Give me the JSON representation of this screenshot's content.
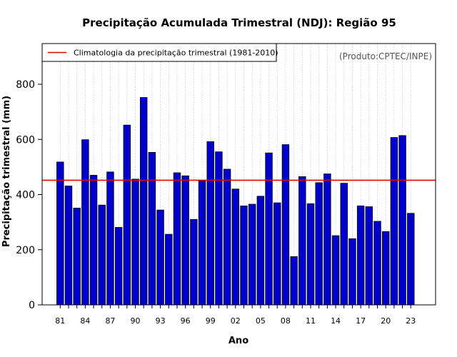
{
  "chart_data": {
    "type": "bar",
    "title": "Precipitação Acumulada Trimestral (NDJ): Região 95",
    "xlabel": "Ano",
    "ylabel": "Precipitação trimestral (mm)",
    "ylim": [
      0,
      950
    ],
    "yticks": [
      0,
      200,
      400,
      600,
      800
    ],
    "categories": [
      "81",
      "82",
      "83",
      "84",
      "85",
      "86",
      "87",
      "88",
      "89",
      "90",
      "91",
      "92",
      "93",
      "94",
      "95",
      "96",
      "97",
      "98",
      "99",
      "00",
      "01",
      "02",
      "03",
      "04",
      "05",
      "06",
      "07",
      "08",
      "09",
      "10",
      "11",
      "12",
      "13",
      "14",
      "15",
      "16",
      "17",
      "18",
      "19",
      "20",
      "21",
      "22",
      "23"
    ],
    "xtick_labels": [
      "81",
      "84",
      "87",
      "90",
      "93",
      "96",
      "99",
      "02",
      "05",
      "08",
      "11",
      "14",
      "17",
      "20",
      "23"
    ],
    "values": [
      518,
      431,
      351,
      599,
      470,
      362,
      482,
      281,
      652,
      456,
      752,
      553,
      344,
      256,
      479,
      468,
      310,
      450,
      592,
      555,
      492,
      420,
      359,
      365,
      394,
      551,
      370,
      581,
      175,
      465,
      367,
      443,
      475,
      251,
      441,
      240,
      359,
      356,
      303,
      266,
      607,
      614,
      332
    ],
    "bar_color": "#0000CD",
    "bar_edge_color": "#000000",
    "reference_line": {
      "label": "Climatologia da precipitação trimestral (1981-2010)",
      "value": 452,
      "color": "#e00000"
    },
    "legend_position": "top-left",
    "grid": "vertical-dotted",
    "credit": "(Produto:CPTEC/INPE)"
  }
}
